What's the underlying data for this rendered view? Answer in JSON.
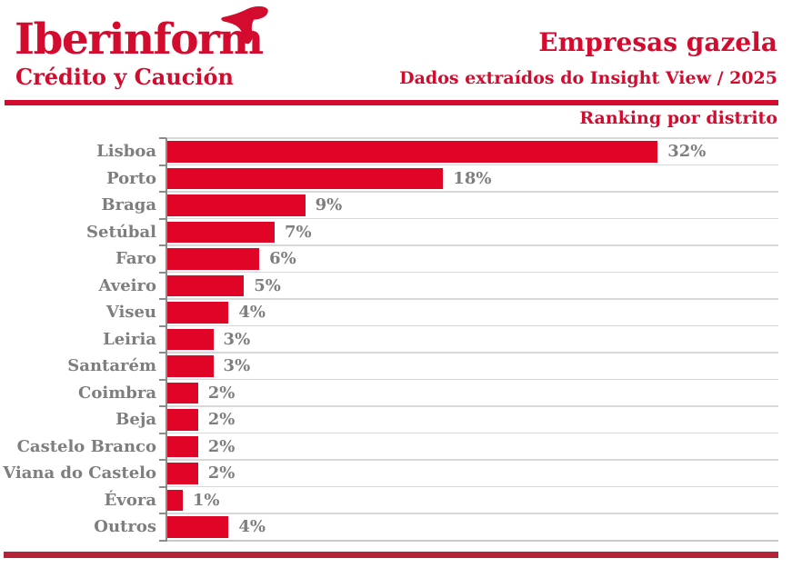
{
  "brand": {
    "logo_text": "Iberinform",
    "logo_tagline": "Crédito y Caución",
    "logo_color": "#D30C2F",
    "bird_icon": "bird-swoosh-icon"
  },
  "header": {
    "title": "Empresas gazela",
    "subtitle": "Dados extraídos do Insight View / 2025",
    "section_label": "Ranking por distrito",
    "accent_color": "#D30C2F",
    "divider_color": "#D30C2F"
  },
  "chart_data": {
    "type": "bar",
    "orientation": "horizontal",
    "title": "Ranking por distrito",
    "categories": [
      "Lisboa",
      "Porto",
      "Braga",
      "Setúbal",
      "Faro",
      "Aveiro",
      "Viseu",
      "Leiria",
      "Santarém",
      "Coimbra",
      "Beja",
      "Castelo Branco",
      "Viana do Castelo",
      "Évora",
      "Outros"
    ],
    "values": [
      32,
      18,
      9,
      7,
      6,
      5,
      4,
      3,
      3,
      2,
      2,
      2,
      2,
      1,
      4
    ],
    "value_labels": [
      "32%",
      "18%",
      "9%",
      "7%",
      "6%",
      "5%",
      "4%",
      "3%",
      "3%",
      "2%",
      "2%",
      "2%",
      "2%",
      "1%",
      "4%"
    ],
    "unit": "%",
    "xlim": [
      0,
      40
    ],
    "grid": true,
    "legend": false,
    "bar_color": "#E00427",
    "category_label_color": "#7E7E7E",
    "value_label_color": "#7E7E7E",
    "gridline_color": "#D8D8D8",
    "bottom_axis_color": "#C9C9C9",
    "axis_color": "#8C8C8C"
  },
  "footer": {
    "bar_color": "#B62338"
  }
}
